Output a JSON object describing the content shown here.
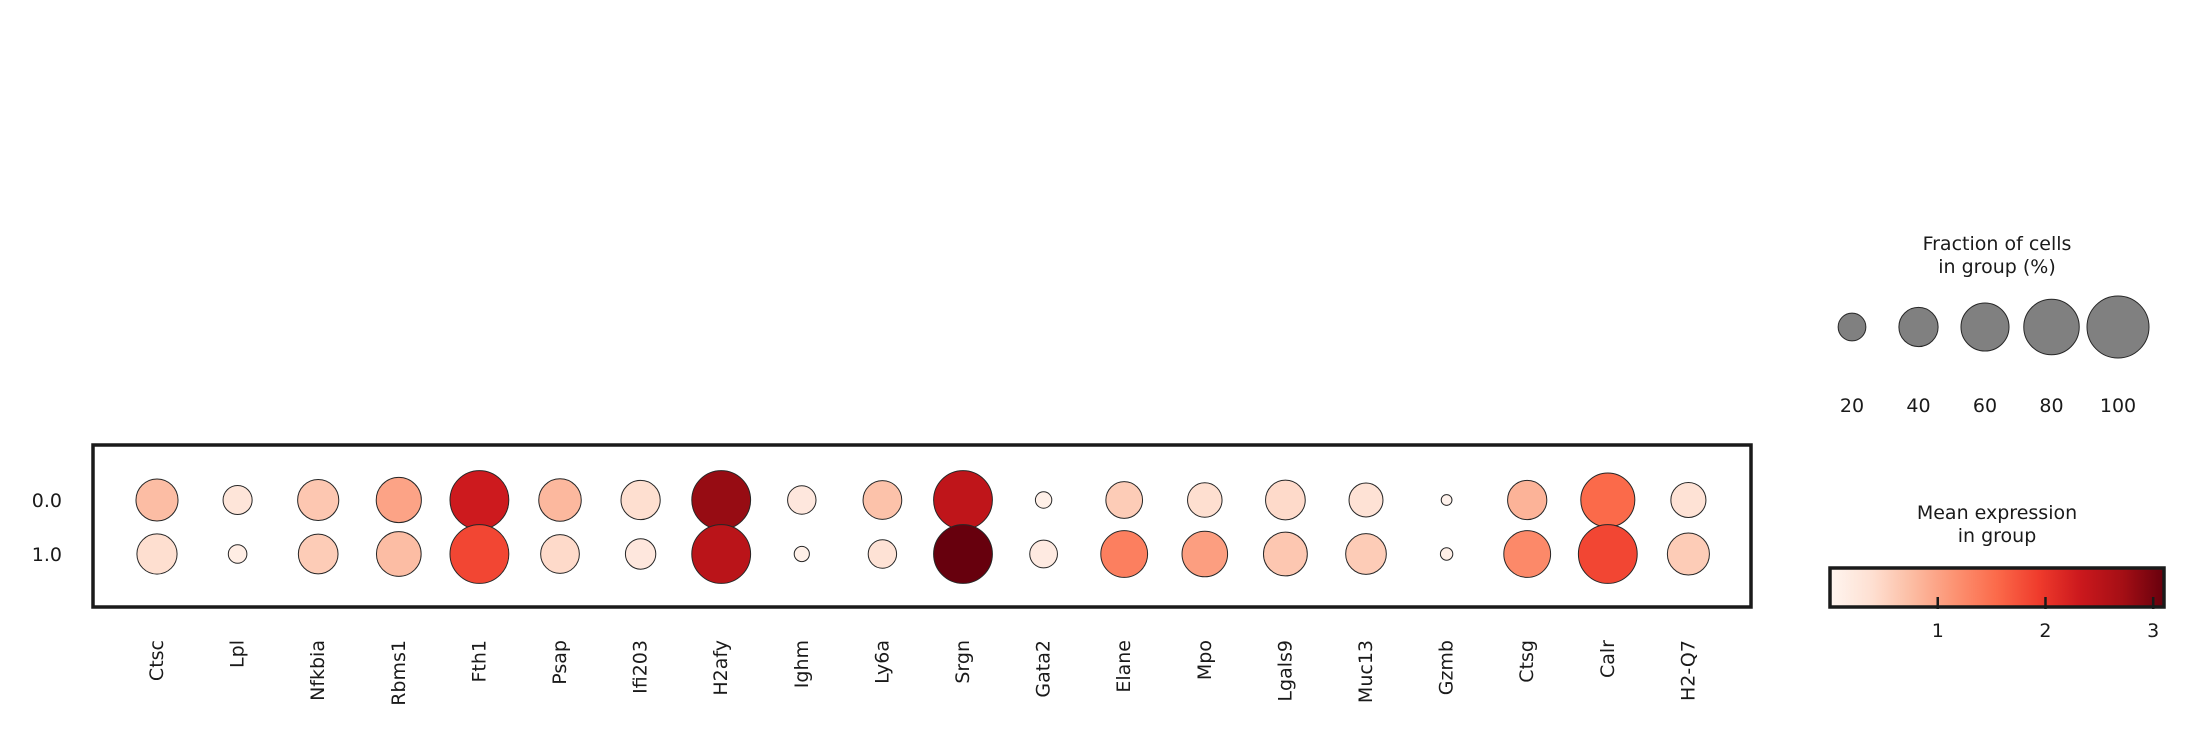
{
  "chart_data": {
    "type": "dotplot",
    "genes": [
      "Ctsc",
      "Lpl",
      "Nfkbia",
      "Rbms1",
      "Fth1",
      "Psap",
      "Ifi203",
      "H2afy",
      "Ighm",
      "Ly6a",
      "Srgn",
      "Gata2",
      "Elane",
      "Mpo",
      "Lgals9",
      "Muc13",
      "Gzmb",
      "Ctsg",
      "Calr",
      "H2-Q7"
    ],
    "groups": [
      "0.0",
      "1.0"
    ],
    "fraction_percent": [
      [
        46,
        22,
        44,
        53,
        90,
        47,
        40,
        90,
        21,
        39,
        90,
        7,
        35,
        31,
        41,
        30,
        3,
        40,
        76,
        32
      ],
      [
        42,
        9,
        41,
        52,
        90,
        39,
        24,
        90,
        6,
        21,
        90,
        20,
        57,
        54,
        50,
        43,
        4,
        57,
        90,
        46
      ]
    ],
    "mean_expression": [
      [
        0.75,
        0.3,
        0.65,
        1.0,
        2.3,
        0.8,
        0.4,
        2.8,
        0.25,
        0.7,
        2.45,
        0.1,
        0.6,
        0.4,
        0.45,
        0.35,
        0.05,
        0.85,
        1.55,
        0.35
      ],
      [
        0.4,
        0.15,
        0.6,
        0.75,
        1.85,
        0.45,
        0.25,
        2.5,
        0.1,
        0.35,
        3.1,
        0.2,
        1.35,
        1.05,
        0.65,
        0.6,
        0.1,
        1.25,
        1.85,
        0.6
      ]
    ],
    "size_legend": {
      "title_line1": "Fraction of cells",
      "title_line2": "in group (%)",
      "values": [
        20,
        40,
        60,
        80,
        100
      ],
      "labels": [
        "20",
        "40",
        "60",
        "80",
        "100"
      ]
    },
    "color_legend": {
      "title_line1": "Mean expression",
      "title_line2": "in group",
      "range": [
        0,
        3.1
      ],
      "ticks": [
        1,
        2,
        3
      ],
      "tick_labels": [
        "1",
        "2",
        "3"
      ]
    },
    "colormap": [
      "#fff5f0",
      "#fee0d2",
      "#fcbba1",
      "#fc9272",
      "#fb6a4a",
      "#ef3b2c",
      "#cb181d",
      "#a50f15",
      "#67000d"
    ],
    "swatch_color": "#808080"
  }
}
